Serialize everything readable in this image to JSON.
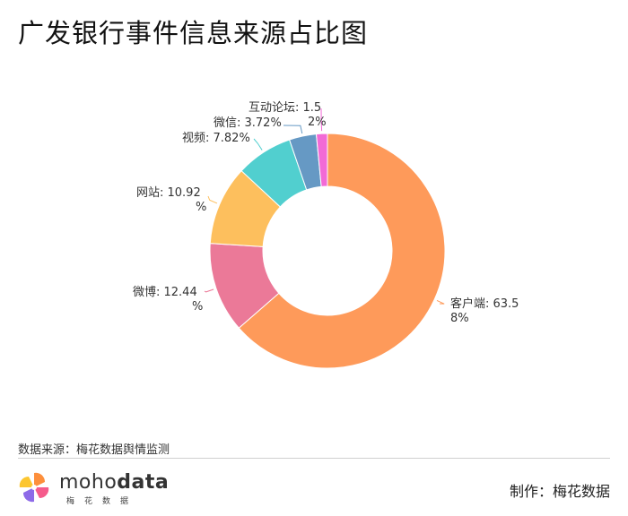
{
  "title": "广发银行事件信息来源占比图",
  "source": "数据来源：梅花数据舆情监测",
  "credit": "制作：梅花数据",
  "logo": {
    "word_light": "moho",
    "word_bold": "data",
    "sub": "梅花数据"
  },
  "chart_data": {
    "type": "pie",
    "donut": true,
    "title": "广发银行事件信息来源占比图",
    "slices": [
      {
        "name": "客户端",
        "value": 63.58,
        "label_lines": [
          "客户端: 63.5",
          "8%"
        ],
        "color": "#fe9a5a"
      },
      {
        "name": "微博",
        "value": 12.44,
        "label_lines": [
          "微博: 12.44",
          "%"
        ],
        "color": "#eb7998"
      },
      {
        "name": "网站",
        "value": 10.92,
        "label_lines": [
          "网站: 10.92",
          "%"
        ],
        "color": "#fdbf5d"
      },
      {
        "name": "视频",
        "value": 7.82,
        "label_lines": [
          "视频: 7.82%"
        ],
        "color": "#51cfcf"
      },
      {
        "name": "微信",
        "value": 3.72,
        "label_lines": [
          "微信: 3.72%"
        ],
        "color": "#6699c4"
      },
      {
        "name": "互动论坛",
        "value": 1.52,
        "label_lines": [
          "互动论坛: 1.5",
          "2%"
        ],
        "color": "#f26ad6"
      }
    ]
  }
}
